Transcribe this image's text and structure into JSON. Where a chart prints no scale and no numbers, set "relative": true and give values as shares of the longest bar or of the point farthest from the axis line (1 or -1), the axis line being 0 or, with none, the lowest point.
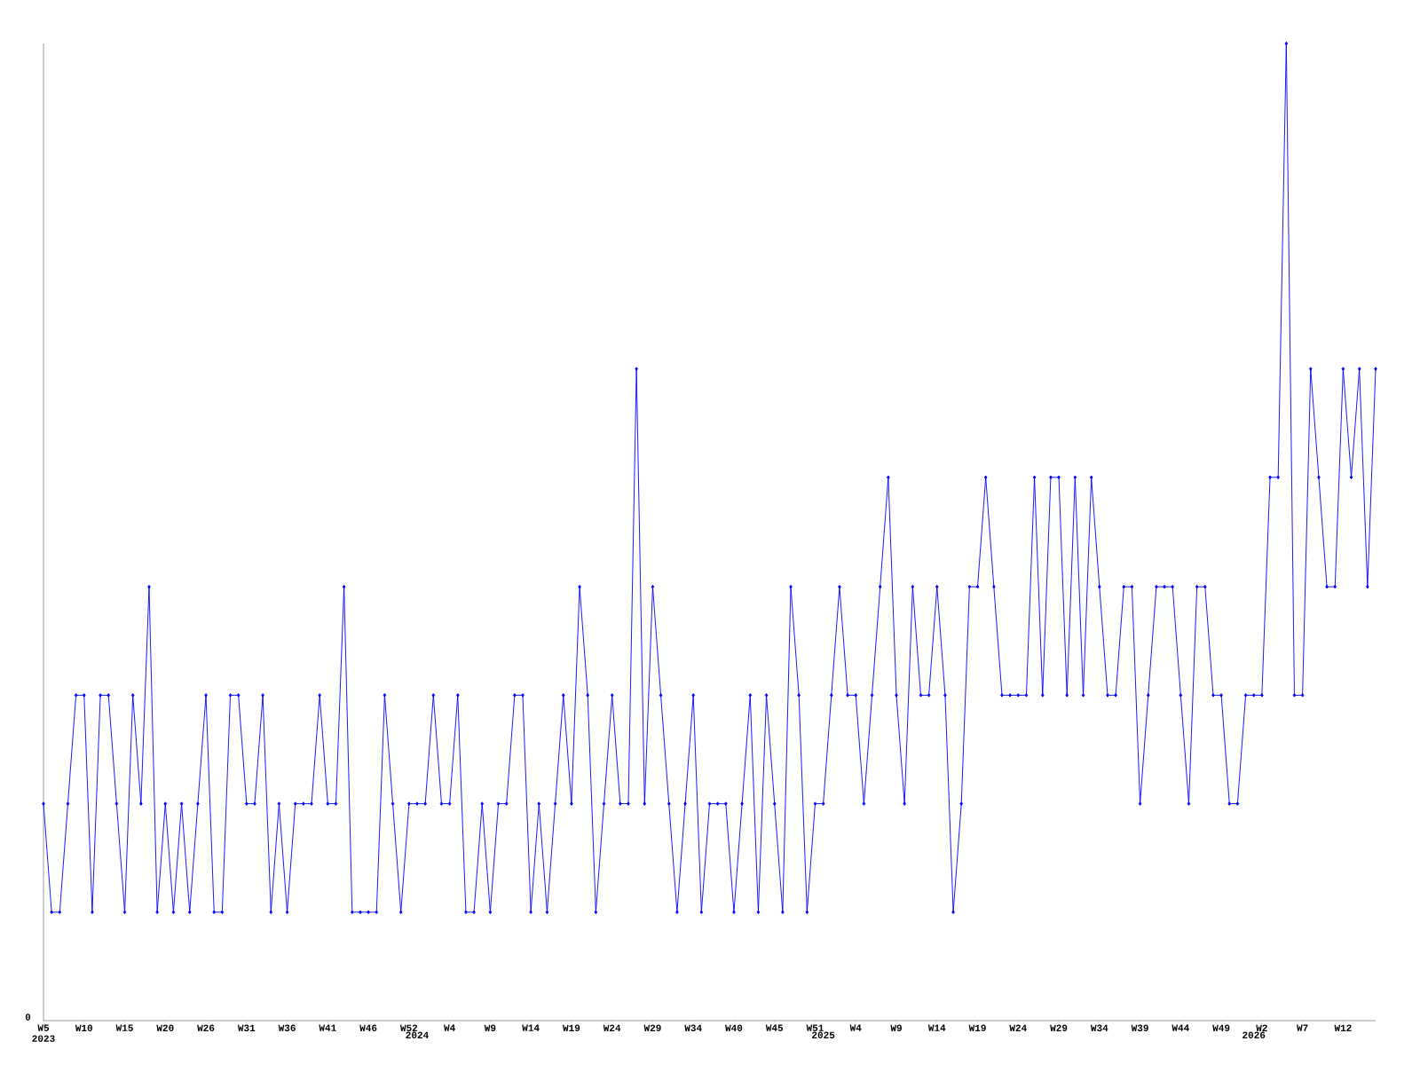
{
  "chart_data": {
    "type": "line",
    "relative": true,
    "color": "#0000ff",
    "marker": "diamond",
    "categories": [
      "W5 2023",
      null,
      null,
      null,
      null,
      "W10",
      null,
      null,
      null,
      null,
      "W15",
      null,
      null,
      null,
      null,
      "W20",
      null,
      null,
      null,
      null,
      "W26",
      null,
      null,
      null,
      null,
      "W31",
      null,
      null,
      null,
      null,
      "W36",
      null,
      null,
      null,
      null,
      "W41",
      null,
      null,
      null,
      null,
      "W46",
      null,
      null,
      null,
      null,
      "W52",
      "2024",
      null,
      null,
      null,
      "W4",
      null,
      null,
      null,
      null,
      "W9",
      null,
      null,
      null,
      null,
      "W14",
      null,
      null,
      null,
      null,
      "W19",
      null,
      null,
      null,
      null,
      "W24",
      null,
      null,
      null,
      null,
      "W29",
      null,
      null,
      null,
      null,
      "W34",
      null,
      null,
      null,
      null,
      "W40",
      null,
      null,
      null,
      null,
      "W45",
      null,
      null,
      null,
      null,
      "W51",
      "2025",
      null,
      null,
      null,
      "W4",
      null,
      null,
      null,
      null,
      "W9",
      null,
      null,
      null,
      null,
      "W14",
      null,
      null,
      null,
      null,
      "W19",
      null,
      null,
      null,
      null,
      "W24",
      null,
      null,
      null,
      null,
      "W29",
      null,
      null,
      null,
      null,
      "W34",
      null,
      null,
      null,
      null,
      "W39",
      null,
      null,
      null,
      null,
      "W44",
      null,
      null,
      null,
      null,
      "W49",
      null,
      null,
      null,
      "2026",
      "W2",
      null,
      null,
      null,
      null,
      "W7",
      null,
      null,
      null,
      null,
      "W12",
      null,
      null,
      null,
      null
    ],
    "values": [
      0.222,
      0.111,
      0.111,
      0.222,
      0.333,
      0.333,
      0.111,
      0.333,
      0.333,
      0.222,
      0.111,
      0.333,
      0.222,
      0.444,
      0.111,
      0.222,
      0.111,
      0.222,
      0.111,
      0.222,
      0.333,
      0.111,
      0.111,
      0.333,
      0.333,
      0.222,
      0.222,
      0.333,
      0.111,
      0.222,
      0.111,
      0.222,
      0.222,
      0.222,
      0.333,
      0.222,
      0.222,
      0.444,
      0.111,
      0.111,
      0.111,
      0.111,
      0.333,
      0.222,
      0.111,
      0.222,
      0.222,
      0.222,
      0.333,
      0.222,
      0.222,
      0.333,
      0.111,
      0.111,
      0.222,
      0.111,
      0.222,
      0.222,
      0.333,
      0.333,
      0.111,
      0.222,
      0.111,
      0.222,
      0.333,
      0.222,
      0.444,
      0.333,
      0.111,
      0.222,
      0.333,
      0.222,
      0.222,
      0.667,
      0.222,
      0.444,
      0.333,
      0.222,
      0.111,
      0.222,
      0.333,
      0.111,
      0.222,
      0.222,
      0.222,
      0.111,
      0.222,
      0.333,
      0.111,
      0.333,
      0.222,
      0.111,
      0.444,
      0.333,
      0.111,
      0.222,
      0.222,
      0.333,
      0.444,
      0.333,
      0.333,
      0.222,
      0.333,
      0.444,
      0.556,
      0.333,
      0.222,
      0.444,
      0.333,
      0.333,
      0.444,
      0.333,
      0.111,
      0.222,
      0.444,
      0.444,
      0.556,
      0.444,
      0.333,
      0.333,
      0.333,
      0.333,
      0.556,
      0.333,
      0.556,
      0.556,
      0.333,
      0.556,
      0.333,
      0.556,
      0.444,
      0.333,
      0.333,
      0.444,
      0.444,
      0.222,
      0.333,
      0.444,
      0.444,
      0.444,
      0.333,
      0.222,
      0.444,
      0.444,
      0.333,
      0.333,
      0.222,
      0.222,
      0.333,
      0.333,
      0.333,
      0.556,
      0.556,
      1,
      0.333,
      0.333,
      0.667,
      0.556,
      0.444,
      0.444,
      0.667,
      0.556,
      0.667,
      0.444,
      0.667
    ],
    "annotations": [
      "0"
    ]
  }
}
